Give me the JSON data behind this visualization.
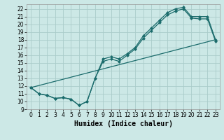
{
  "title": "",
  "xlabel": "Humidex (Indice chaleur)",
  "bg_color": "#cce8e6",
  "grid_color": "#aaccca",
  "line_color": "#1a6b6b",
  "xlim": [
    -0.5,
    23.5
  ],
  "ylim": [
    9,
    22.6
  ],
  "xticks": [
    0,
    1,
    2,
    3,
    4,
    5,
    6,
    7,
    8,
    9,
    10,
    11,
    12,
    13,
    14,
    15,
    16,
    17,
    18,
    19,
    20,
    21,
    22,
    23
  ],
  "yticks": [
    9,
    10,
    11,
    12,
    13,
    14,
    15,
    16,
    17,
    18,
    19,
    20,
    21,
    22
  ],
  "curve1_x": [
    0,
    1,
    2,
    3,
    4,
    5,
    6,
    7,
    8,
    9,
    10,
    11,
    12,
    13,
    14,
    15,
    16,
    17,
    18,
    19,
    20,
    21,
    22,
    23
  ],
  "curve1_y": [
    11.8,
    11.0,
    10.8,
    10.4,
    10.5,
    10.3,
    9.5,
    10.0,
    13.0,
    15.5,
    15.8,
    15.5,
    16.2,
    17.0,
    18.5,
    19.5,
    20.5,
    21.5,
    22.0,
    22.2,
    21.0,
    21.0,
    21.0,
    18.0
  ],
  "curve2_x": [
    0,
    1,
    2,
    3,
    4,
    5,
    6,
    7,
    8,
    9,
    10,
    11,
    12,
    13,
    14,
    15,
    16,
    17,
    18,
    19,
    20,
    21,
    22,
    23
  ],
  "curve2_y": [
    11.8,
    11.0,
    10.8,
    10.4,
    10.5,
    10.3,
    9.5,
    10.0,
    13.0,
    15.2,
    15.5,
    15.2,
    16.0,
    16.8,
    18.2,
    19.2,
    20.2,
    21.2,
    21.7,
    22.0,
    20.8,
    20.7,
    20.7,
    17.8
  ],
  "line3_x": [
    0,
    23
  ],
  "line3_y": [
    11.8,
    18.0
  ],
  "marker_size": 2.5,
  "lw": 0.9,
  "tick_fontsize": 5.5,
  "xlabel_fontsize": 7
}
